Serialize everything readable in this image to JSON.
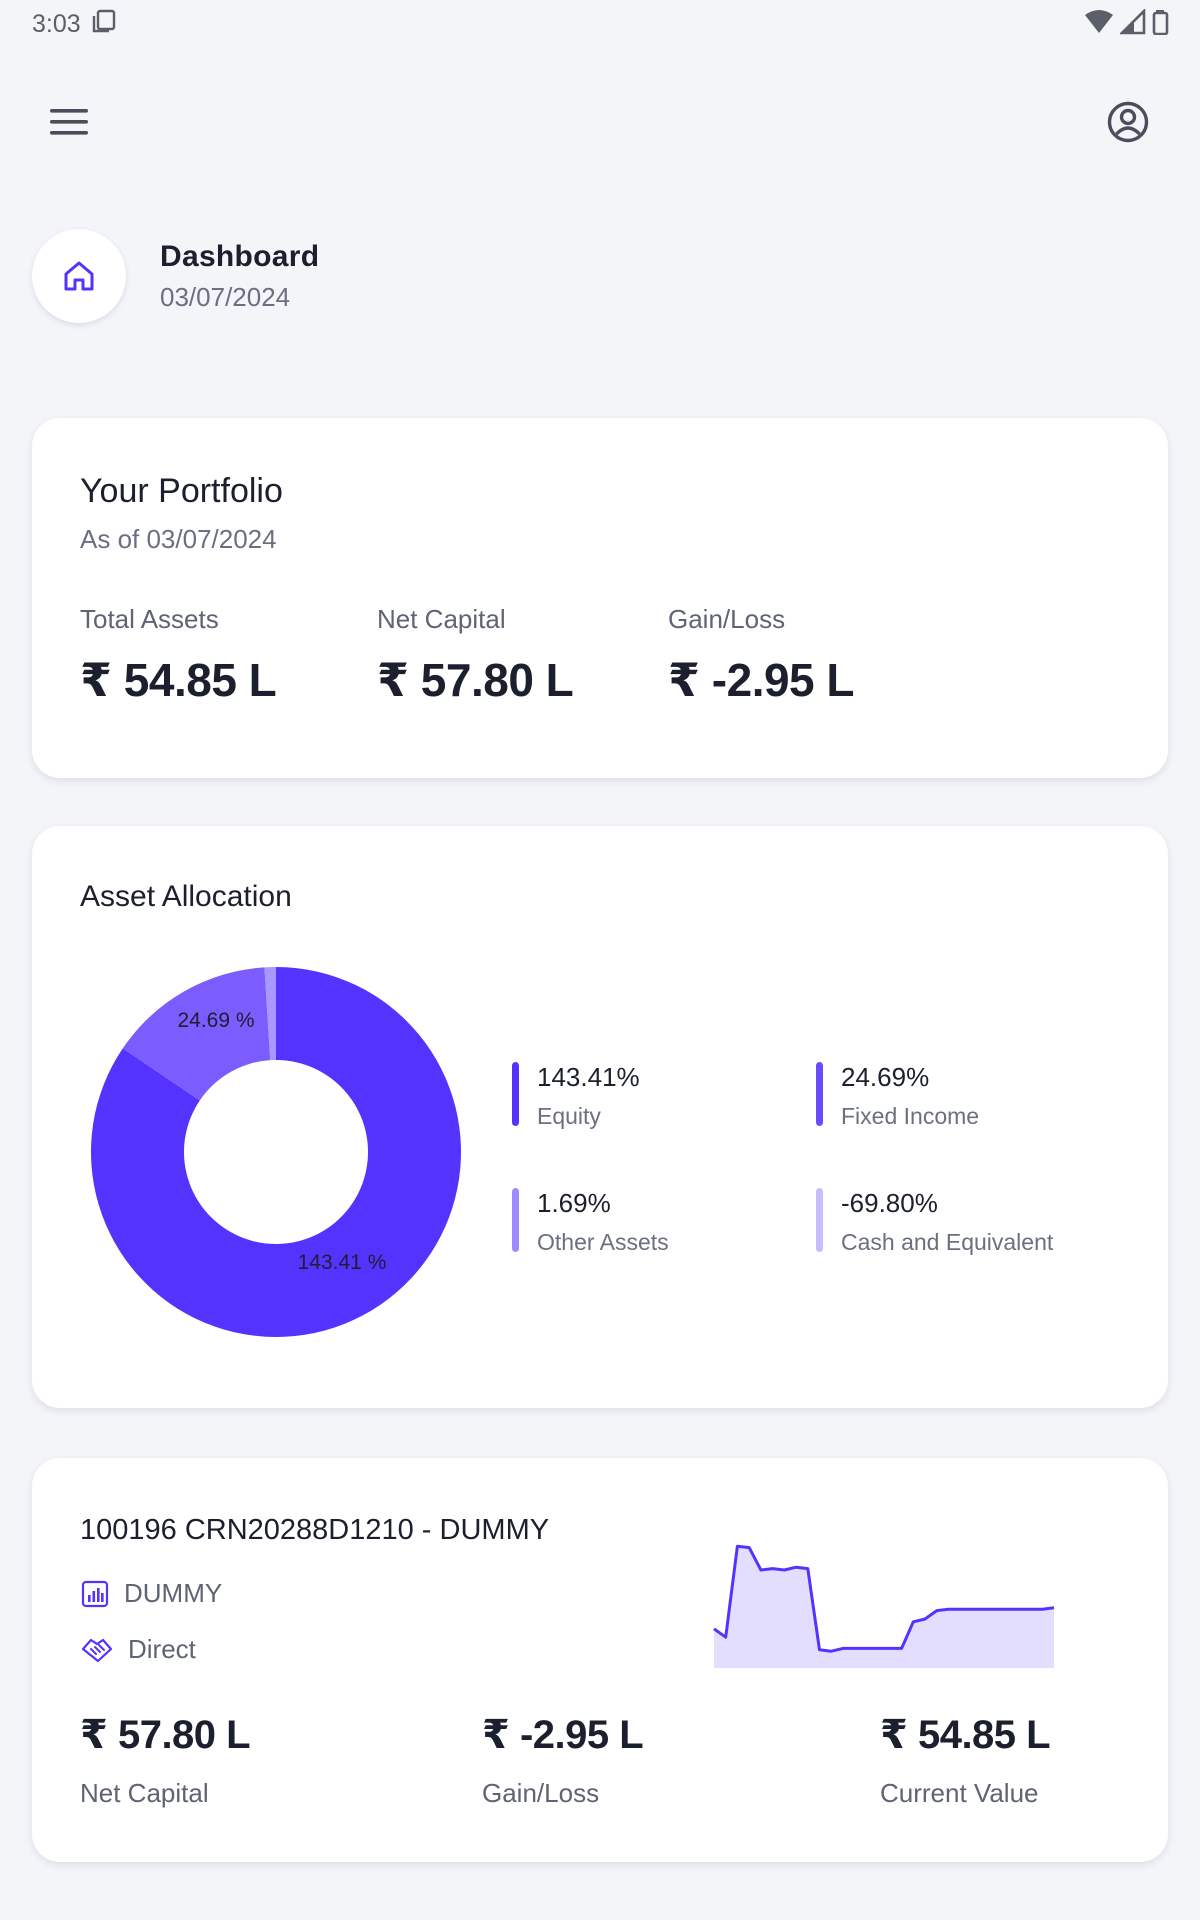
{
  "status_bar": {
    "time": "3:03"
  },
  "header": {
    "title": "Dashboard",
    "date": "03/07/2024"
  },
  "portfolio": {
    "title": "Your Portfolio",
    "subtitle": "As of 03/07/2024",
    "metrics": [
      {
        "label": "Total Assets",
        "value": "₹ 54.85 L"
      },
      {
        "label": "Net Capital",
        "value": "₹ 57.80 L"
      },
      {
        "label": "Gain/Loss",
        "value": "₹ -2.95 L"
      }
    ]
  },
  "allocation": {
    "title": "Asset Allocation",
    "donut_labels": [
      "24.69 %",
      "143.41 %"
    ],
    "legend": [
      {
        "pct": "143.41%",
        "name": "Equity",
        "color": "#5533ff"
      },
      {
        "pct": "24.69%",
        "name": "Fixed Income",
        "color": "#6a4bff"
      },
      {
        "pct": "1.69%",
        "name": "Other Assets",
        "color": "#9c8cff"
      },
      {
        "pct": "-69.80%",
        "name": "Cash and Equivalent",
        "color": "#c6bdfb"
      }
    ]
  },
  "chart_data": {
    "type": "pie",
    "categories": [
      "Equity",
      "Fixed Income",
      "Other Assets",
      "Cash and Equivalent"
    ],
    "values": [
      143.41,
      24.69,
      1.69,
      -69.8
    ],
    "colors": [
      "#5533ff",
      "#7a5cff",
      "#a898ff",
      "#c6bdfb"
    ]
  },
  "holding": {
    "title": "100196 CRN20288D1210 - DUMMY",
    "category": "DUMMY",
    "mode": "Direct",
    "metrics": [
      {
        "value": "₹ 57.80 L",
        "label": "Net Capital"
      },
      {
        "value": "₹ -2.95 L",
        "label": "Gain/Loss"
      },
      {
        "value": "₹ 54.85 L",
        "label": "Current Value"
      }
    ],
    "trend": [
      0.28,
      0.22,
      0.87,
      0.86,
      0.7,
      0.71,
      0.7,
      0.72,
      0.71,
      0.13,
      0.12,
      0.14,
      0.14,
      0.14,
      0.14,
      0.14,
      0.14,
      0.33,
      0.35,
      0.41,
      0.42,
      0.42,
      0.42,
      0.42,
      0.42,
      0.42,
      0.42,
      0.42,
      0.42,
      0.43
    ]
  },
  "colors": {
    "accent": "#5533ff",
    "card": "#ffffff",
    "background": "#f3f5f9"
  }
}
